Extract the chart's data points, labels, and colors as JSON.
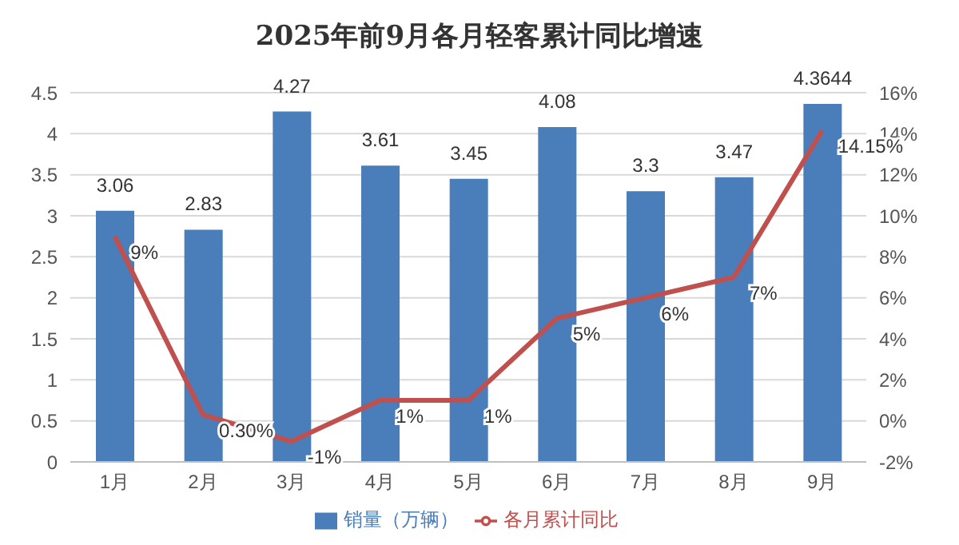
{
  "chart_data": {
    "type": "bar",
    "title": "2025年前9月各月轻客累计同比增速",
    "categories": [
      "1月",
      "2月",
      "3月",
      "4月",
      "5月",
      "6月",
      "7月",
      "8月",
      "9月"
    ],
    "series": [
      {
        "name": "销量（万辆）",
        "color": "#4a7ebb",
        "values": [
          3.06,
          2.83,
          4.27,
          3.61,
          3.45,
          4.08,
          3.3,
          3.47,
          4.3644
        ],
        "data_labels": true
      },
      {
        "name": "各月累计同比",
        "type": "line",
        "axis": "y2",
        "color": "#c0504d",
        "values": [
          9,
          0.3,
          -1,
          1,
          1,
          5,
          6,
          7,
          14.15
        ],
        "value_labels": [
          "9%",
          "0.30%",
          "-1%",
          "1%",
          "1%",
          "5%",
          "6%",
          "7%",
          "14.15%"
        ]
      }
    ],
    "ylim": [
      0,
      4.5
    ],
    "yticks": [
      0,
      0.5,
      1,
      1.5,
      2,
      2.5,
      3,
      3.5,
      4,
      4.5
    ],
    "y2lim": [
      -2,
      16
    ],
    "y2ticks": [
      {
        "value": -2,
        "label": "-2%"
      },
      {
        "value": 0,
        "label": "0%"
      },
      {
        "value": 2,
        "label": "2%"
      },
      {
        "value": 4,
        "label": "4%"
      },
      {
        "value": 6,
        "label": "6%"
      },
      {
        "value": 8,
        "label": "8%"
      },
      {
        "value": 10,
        "label": "10%"
      },
      {
        "value": 12,
        "label": "12%"
      },
      {
        "value": 14,
        "label": "14%"
      },
      {
        "value": 16,
        "label": "16%"
      }
    ],
    "grid": "y",
    "legend": "bottom",
    "marker": "none",
    "line_style": "solid"
  }
}
